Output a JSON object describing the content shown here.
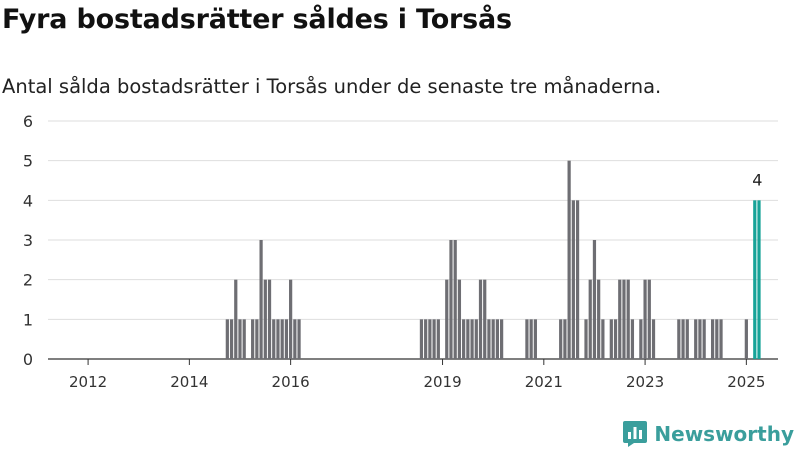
{
  "title": "Fyra bostadsrätter såldes i Torsås",
  "subtitle": "Antal sålda bostadsrätter i Torsås under de senaste tre månaderna.",
  "brand": {
    "name": "Newsworthy",
    "color": "#3a9e9c"
  },
  "colors": {
    "bar": "#6e6e73",
    "highlight": "#17a398",
    "grid": "#dedede",
    "axis": "#333333"
  },
  "chart_data": {
    "type": "bar",
    "title": "Fyra bostadsrätter såldes i Torsås",
    "subtitle": "Antal sålda bostadsrätter i Torsås under de senaste tre månaderna.",
    "xlabel": "",
    "ylabel": "",
    "x_unit": "month",
    "xlim": [
      "2011-04",
      "2025-08"
    ],
    "ylim": [
      0,
      6
    ],
    "yticks": [
      0,
      1,
      2,
      3,
      4,
      5,
      6
    ],
    "xticks": [
      "2012",
      "2014",
      "2016",
      "2019",
      "2021",
      "2023",
      "2025"
    ],
    "grid": true,
    "legend": "none",
    "annotations": [
      {
        "x": "2025-04",
        "text": "4"
      }
    ],
    "highlight": [
      "2025-03",
      "2025-04"
    ],
    "series": [
      {
        "points": [
          [
            "2014-10",
            1
          ],
          [
            "2014-11",
            1
          ],
          [
            "2014-12",
            2
          ],
          [
            "2015-01",
            1
          ],
          [
            "2015-02",
            1
          ],
          [
            "2015-04",
            1
          ],
          [
            "2015-05",
            1
          ],
          [
            "2015-06",
            3
          ],
          [
            "2015-07",
            2
          ],
          [
            "2015-08",
            2
          ],
          [
            "2015-09",
            1
          ],
          [
            "2015-10",
            1
          ],
          [
            "2015-11",
            1
          ],
          [
            "2015-12",
            1
          ],
          [
            "2016-01",
            2
          ],
          [
            "2016-02",
            1
          ],
          [
            "2016-03",
            1
          ],
          [
            "2018-08",
            1
          ],
          [
            "2018-09",
            1
          ],
          [
            "2018-10",
            1
          ],
          [
            "2018-11",
            1
          ],
          [
            "2018-12",
            1
          ],
          [
            "2019-02",
            2
          ],
          [
            "2019-03",
            3
          ],
          [
            "2019-04",
            3
          ],
          [
            "2019-05",
            2
          ],
          [
            "2019-06",
            1
          ],
          [
            "2019-07",
            1
          ],
          [
            "2019-08",
            1
          ],
          [
            "2019-09",
            1
          ],
          [
            "2019-10",
            2
          ],
          [
            "2019-11",
            2
          ],
          [
            "2019-12",
            1
          ],
          [
            "2020-01",
            1
          ],
          [
            "2020-02",
            1
          ],
          [
            "2020-03",
            1
          ],
          [
            "2020-09",
            1
          ],
          [
            "2020-10",
            1
          ],
          [
            "2020-11",
            1
          ],
          [
            "2021-05",
            1
          ],
          [
            "2021-06",
            1
          ],
          [
            "2021-07",
            5
          ],
          [
            "2021-08",
            4
          ],
          [
            "2021-09",
            4
          ],
          [
            "2021-11",
            1
          ],
          [
            "2021-12",
            2
          ],
          [
            "2022-01",
            3
          ],
          [
            "2022-02",
            2
          ],
          [
            "2022-03",
            1
          ],
          [
            "2022-05",
            1
          ],
          [
            "2022-06",
            1
          ],
          [
            "2022-07",
            2
          ],
          [
            "2022-08",
            2
          ],
          [
            "2022-09",
            2
          ],
          [
            "2022-10",
            1
          ],
          [
            "2022-12",
            1
          ],
          [
            "2023-01",
            2
          ],
          [
            "2023-02",
            2
          ],
          [
            "2023-03",
            1
          ],
          [
            "2023-09",
            1
          ],
          [
            "2023-10",
            1
          ],
          [
            "2023-11",
            1
          ],
          [
            "2024-01",
            1
          ],
          [
            "2024-02",
            1
          ],
          [
            "2024-03",
            1
          ],
          [
            "2024-05",
            1
          ],
          [
            "2024-06",
            1
          ],
          [
            "2024-07",
            1
          ],
          [
            "2025-01",
            1
          ],
          [
            "2025-03",
            4
          ],
          [
            "2025-04",
            4
          ]
        ]
      }
    ]
  }
}
